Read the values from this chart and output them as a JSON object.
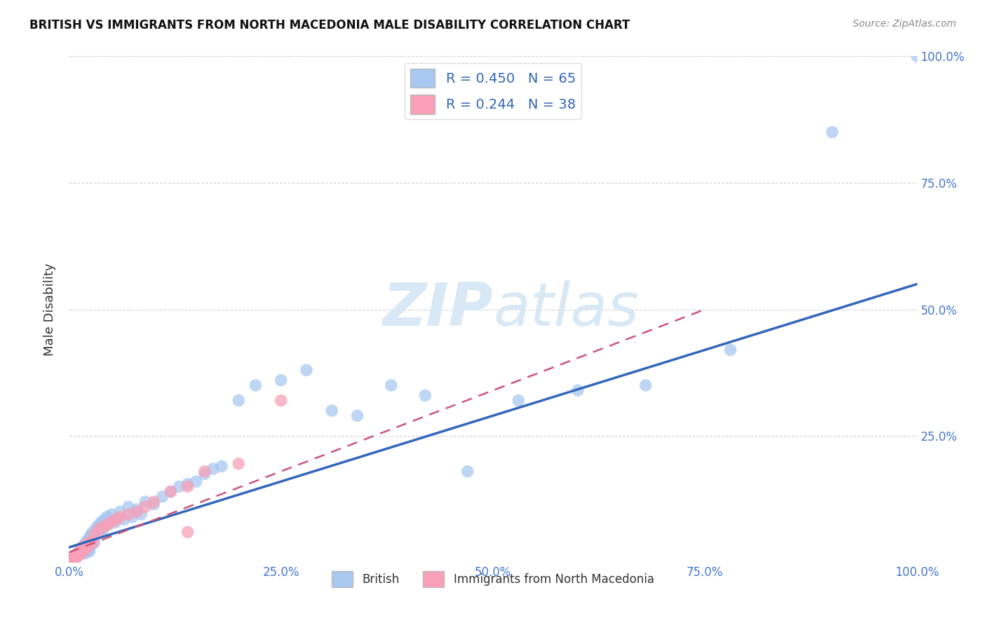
{
  "title": "BRITISH VS IMMIGRANTS FROM NORTH MACEDONIA MALE DISABILITY CORRELATION CHART",
  "source": "Source: ZipAtlas.com",
  "ylabel": "Male Disability",
  "xlabel": "",
  "bg_color": "#ffffff",
  "grid_color": "#c8c8c8",
  "british_color": "#a8c8f0",
  "british_line_color": "#3366bb",
  "macedonia_color": "#f8a0b8",
  "macedonia_line_color": "#cc5577",
  "watermark_color": "#d8e8f4",
  "R_british": 0.45,
  "N_british": 65,
  "R_macedonia": 0.244,
  "N_macedonia": 38,
  "xlim": [
    0.0,
    1.0
  ],
  "ylim": [
    0.0,
    1.0
  ],
  "xtick_labels": [
    "0.0%",
    "25.0%",
    "50.0%",
    "75.0%",
    "100.0%"
  ],
  "xtick_vals": [
    0.0,
    0.25,
    0.5,
    0.75,
    1.0
  ],
  "ytick_labels": [
    "25.0%",
    "50.0%",
    "75.0%",
    "100.0%"
  ],
  "ytick_vals": [
    0.25,
    0.5,
    0.75,
    1.0
  ],
  "brit_x": [
    0.005,
    0.007,
    0.008,
    0.01,
    0.011,
    0.012,
    0.013,
    0.014,
    0.015,
    0.016,
    0.017,
    0.018,
    0.019,
    0.02,
    0.021,
    0.022,
    0.023,
    0.024,
    0.025,
    0.026,
    0.027,
    0.028,
    0.03,
    0.032,
    0.033,
    0.035,
    0.036,
    0.038,
    0.04,
    0.042,
    0.045,
    0.047,
    0.05,
    0.055,
    0.06,
    0.065,
    0.07,
    0.075,
    0.08,
    0.085,
    0.09,
    0.1,
    0.11,
    0.12,
    0.13,
    0.14,
    0.15,
    0.16,
    0.17,
    0.18,
    0.2,
    0.22,
    0.25,
    0.28,
    0.31,
    0.34,
    0.38,
    0.42,
    0.47,
    0.53,
    0.6,
    0.68,
    0.78,
    0.9,
    1.0
  ],
  "brit_y": [
    0.01,
    0.015,
    0.012,
    0.018,
    0.02,
    0.022,
    0.025,
    0.028,
    0.025,
    0.03,
    0.02,
    0.035,
    0.018,
    0.04,
    0.03,
    0.045,
    0.025,
    0.022,
    0.05,
    0.055,
    0.035,
    0.06,
    0.04,
    0.065,
    0.07,
    0.06,
    0.075,
    0.08,
    0.065,
    0.085,
    0.09,
    0.075,
    0.095,
    0.08,
    0.1,
    0.085,
    0.11,
    0.09,
    0.105,
    0.095,
    0.12,
    0.115,
    0.13,
    0.14,
    0.15,
    0.155,
    0.16,
    0.175,
    0.185,
    0.19,
    0.32,
    0.35,
    0.36,
    0.38,
    0.3,
    0.29,
    0.35,
    0.33,
    0.18,
    0.32,
    0.34,
    0.35,
    0.42,
    0.85,
    1.0
  ],
  "mac_x": [
    0.004,
    0.005,
    0.006,
    0.007,
    0.008,
    0.009,
    0.01,
    0.011,
    0.012,
    0.013,
    0.014,
    0.015,
    0.016,
    0.017,
    0.018,
    0.019,
    0.02,
    0.022,
    0.024,
    0.026,
    0.028,
    0.03,
    0.035,
    0.04,
    0.045,
    0.05,
    0.055,
    0.06,
    0.07,
    0.08,
    0.09,
    0.1,
    0.12,
    0.14,
    0.16,
    0.2,
    0.25,
    0.14
  ],
  "mac_y": [
    0.008,
    0.01,
    0.008,
    0.012,
    0.015,
    0.01,
    0.018,
    0.02,
    0.015,
    0.022,
    0.025,
    0.018,
    0.03,
    0.025,
    0.032,
    0.028,
    0.035,
    0.03,
    0.038,
    0.042,
    0.04,
    0.055,
    0.065,
    0.07,
    0.075,
    0.08,
    0.085,
    0.09,
    0.095,
    0.1,
    0.11,
    0.12,
    0.14,
    0.15,
    0.18,
    0.195,
    0.32,
    0.06
  ],
  "brit_line_x": [
    0.0,
    1.0
  ],
  "brit_line_y": [
    0.03,
    0.55
  ],
  "mac_line_x": [
    0.0,
    0.75
  ],
  "mac_line_y": [
    0.02,
    0.5
  ]
}
